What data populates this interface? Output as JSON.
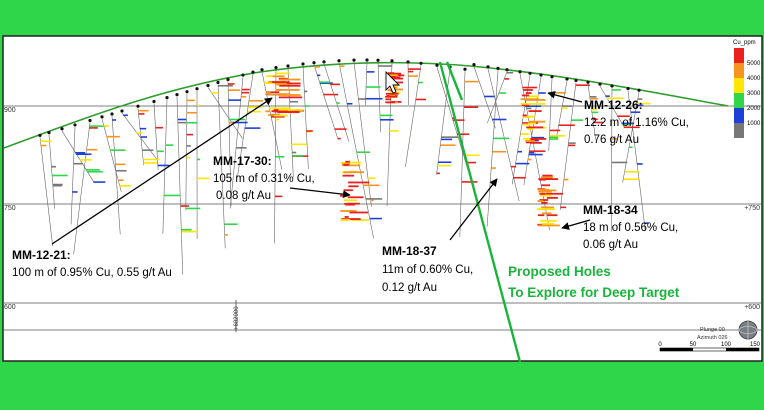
{
  "colors": {
    "frame_green": "#2fd64a",
    "panel_bg": "#ffffff",
    "topo_line": "#2e9e2e",
    "proposed_green": "#19b53a",
    "annotation_black": "#000000"
  },
  "axis": {
    "elev_labels": [
      "900",
      "750",
      "600"
    ],
    "right_labels": [
      "+750",
      "+600"
    ],
    "bottom_easting": "+682000"
  },
  "legend": {
    "title": "Cu_ppm",
    "items": [
      {
        "label": "5000",
        "color": "#e8201e"
      },
      {
        "label": "4000",
        "color": "#f7941d"
      },
      {
        "label": "3000",
        "color": "#ffe600"
      },
      {
        "label": "2000",
        "color": "#2fd64a"
      },
      {
        "label": "1000",
        "color": "#1f3fd9"
      },
      {
        "label": "",
        "color": "#777777"
      }
    ]
  },
  "annotations": [
    {
      "id": "mm-12-26",
      "title": "MM-12-26:",
      "line1": "12.2 m of 1.16% Cu,",
      "line2": "0.76 g/t Au"
    },
    {
      "id": "mm-17-30",
      "title": "MM-17-30:",
      "line1": "105 m of 0.31% Cu,",
      "line2": "0.08 g/t Au"
    },
    {
      "id": "mm-12-21",
      "title": "MM-12-21:",
      "line1": "100 m of 0.95% Cu,  0.55 g/t Au",
      "line2": ""
    },
    {
      "id": "mm-18-34",
      "title": "MM-18-34",
      "line1": "18 m of 0.56% Cu,",
      "line2": "0.06 g/t Au"
    },
    {
      "id": "mm-18-37",
      "title": "MM-18-37",
      "line1": "11m of 0.60% Cu,",
      "line2": "0.12 g/t Au"
    }
  ],
  "proposed": {
    "line1": "Proposed Holes",
    "line2": "To Explore for  Deep Target"
  },
  "view_info": {
    "plunge": "Plunge 00",
    "azimuth": "Azimuth 026"
  },
  "scale_bar": {
    "ticks": [
      "0",
      "50",
      "100",
      "150"
    ]
  }
}
